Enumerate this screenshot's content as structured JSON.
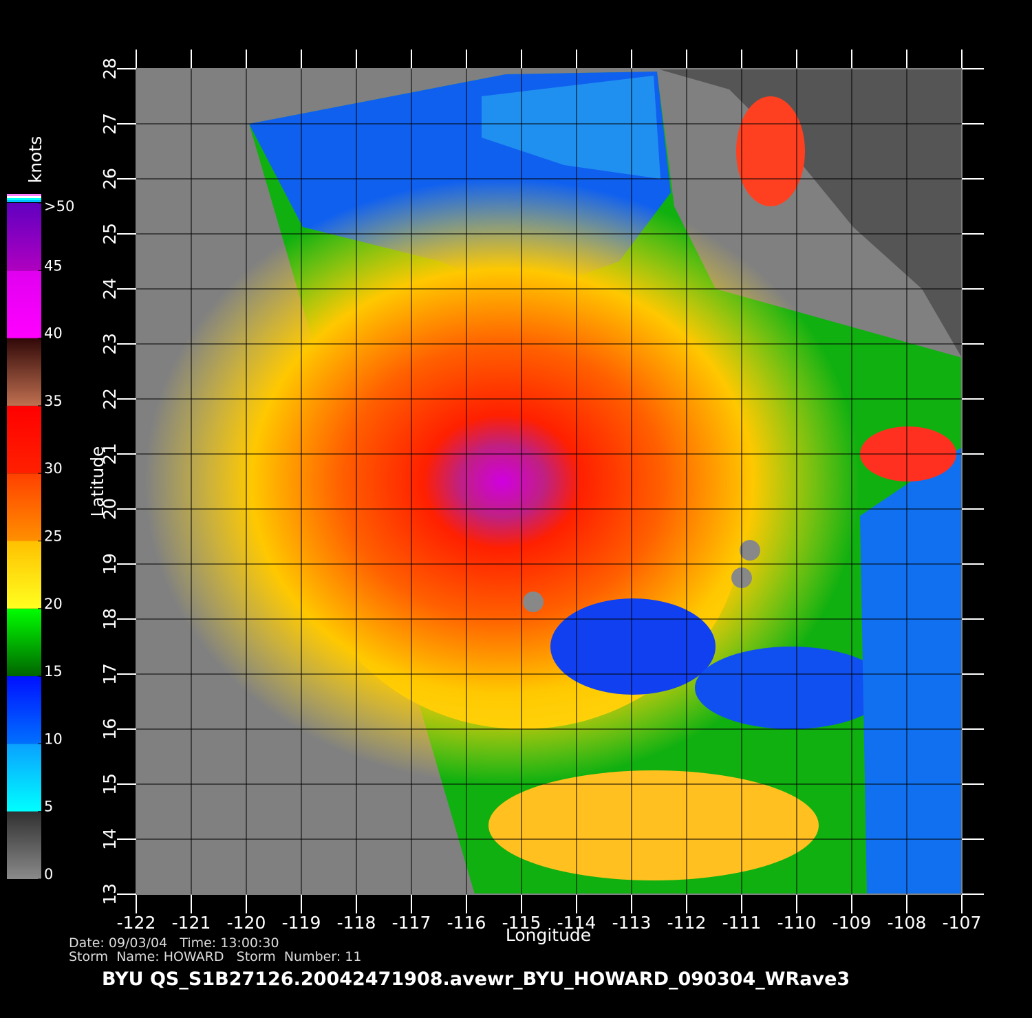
{
  "map": {
    "x_label": "Longitude",
    "y_label": "Latitude",
    "xlim": [
      -122,
      -107
    ],
    "xticks": [
      -122,
      -121,
      -120,
      -119,
      -118,
      -117,
      -116,
      -115,
      -114,
      -113,
      -112,
      -111,
      -110,
      -109,
      -108,
      -107
    ],
    "ylim": [
      13,
      28
    ],
    "yticks": [
      13,
      14,
      15,
      16,
      17,
      18,
      19,
      20,
      21,
      22,
      23,
      24,
      25,
      26,
      27,
      28
    ],
    "colorbar": {
      "title": "knots",
      "lim": [
        0,
        50
      ],
      "ticks": [
        0,
        5,
        10,
        15,
        20,
        25,
        30,
        35,
        40,
        45,
        {
          "value": 50,
          "label": ">50"
        }
      ],
      "colors": [
        [
          "#8a8a8a",
          "#303030"
        ],
        [
          "#00ffff",
          "#0aa0ff"
        ],
        [
          "#0070ff",
          "#0010ff"
        ],
        [
          "#006400",
          "#00ff00"
        ],
        [
          "#ffff20",
          "#ffc000"
        ],
        [
          "#ff9000",
          "#ff4000"
        ],
        [
          "#ff2000",
          "#ff0000"
        ],
        [
          "#c07050",
          "#300808"
        ],
        [
          "#ff00ff",
          "#e000f0"
        ],
        [
          "#b000c0",
          "#6000c0"
        ]
      ]
    },
    "footer": {
      "line1": "Date: 09/03/04   Time: 13:00:30",
      "line2": "Storm  Name: HOWARD   Storm  Number: 11",
      "file": "BYU  QS_S1B27126.20042471908.avewr_BYU_HOWARD_090304_WRave3"
    }
  }
}
